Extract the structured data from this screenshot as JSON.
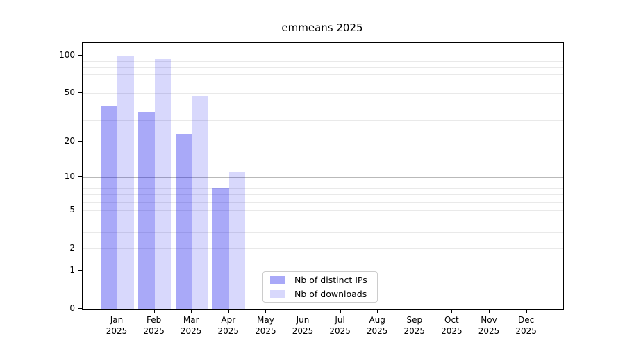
{
  "title": "emmeans 2025",
  "colors": {
    "major_grid": "#b9b9b9",
    "minor_grid": "#e9e9e9",
    "spine": "#000000",
    "text": "#000000",
    "bar_ips_solid": "#a9a9f6",
    "bar_downloads_solid": "#d8d8f9",
    "legend_border": "#cccccc"
  },
  "chart_data": {
    "type": "bar",
    "title": "emmeans 2025",
    "subtitle": "",
    "yscale": "log1p",
    "ylim": [
      0,
      125
    ],
    "yticks": [
      0,
      1,
      2,
      5,
      10,
      20,
      50,
      100
    ],
    "major_gridlines": [
      1,
      10,
      100
    ],
    "minor_gridlines": [
      2,
      3,
      4,
      5,
      6,
      7,
      8,
      9,
      20,
      30,
      40,
      50,
      60,
      70,
      80,
      90
    ],
    "categories": [
      "Jan",
      "Feb",
      "Mar",
      "Apr",
      "May",
      "Jun",
      "Jul",
      "Aug",
      "Sep",
      "Oct",
      "Nov",
      "Dec"
    ],
    "x_tick_year": "2025",
    "grid": true,
    "legend_position": "lower center",
    "series": [
      {
        "name": "Nb of distinct IPs",
        "color": "rgba(10,10,235,0.35)",
        "values": [
          39,
          35,
          23,
          8,
          null,
          null,
          null,
          null,
          null,
          null,
          null,
          null
        ]
      },
      {
        "name": "Nb of downloads",
        "color": "rgba(10,10,235,0.16)",
        "values": [
          100,
          93,
          47,
          11,
          null,
          null,
          null,
          null,
          null,
          null,
          null,
          null
        ]
      }
    ]
  }
}
